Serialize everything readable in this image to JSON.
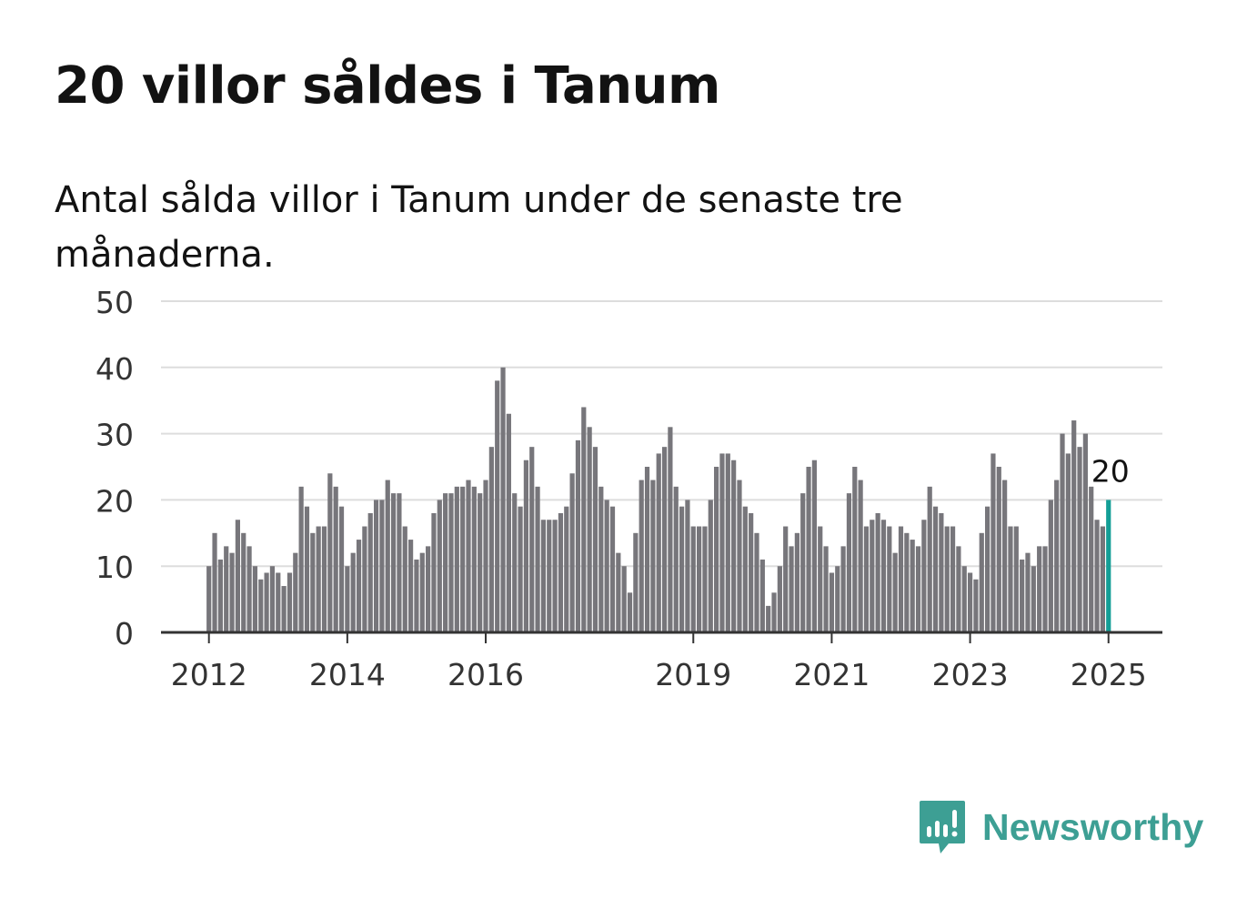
{
  "header": {
    "title": "20 villor såldes i Tanum",
    "subtitle": "Antal sålda villor i Tanum under de senaste tre månaderna."
  },
  "brand": {
    "name": "Newsworthy",
    "icon": "newsworthy-logo-icon",
    "color": "#3d9f94"
  },
  "colors": {
    "bar": "#77767b",
    "highlight": "#139e96",
    "grid": "#dddddd",
    "axis": "#333333",
    "text": "#121212"
  },
  "chart_data": {
    "type": "bar",
    "x_start": "2012-01",
    "x_step": "month",
    "yticks": [
      0,
      10,
      20,
      30,
      40,
      50
    ],
    "ylim": [
      0,
      50
    ],
    "xticks": [
      "2012",
      "2014",
      "2016",
      "2019",
      "2021",
      "2023",
      "2025"
    ],
    "grid": true,
    "values": [
      10,
      15,
      11,
      13,
      12,
      17,
      15,
      13,
      10,
      8,
      9,
      10,
      9,
      7,
      9,
      12,
      22,
      19,
      15,
      16,
      16,
      24,
      22,
      19,
      10,
      12,
      14,
      16,
      18,
      20,
      20,
      23,
      21,
      21,
      16,
      14,
      11,
      12,
      13,
      18,
      20,
      21,
      21,
      22,
      22,
      23,
      22,
      21,
      23,
      28,
      38,
      40,
      33,
      21,
      19,
      26,
      28,
      22,
      17,
      17,
      17,
      18,
      19,
      24,
      29,
      34,
      31,
      28,
      22,
      20,
      19,
      12,
      10,
      6,
      15,
      23,
      25,
      23,
      27,
      28,
      31,
      22,
      19,
      20,
      16,
      16,
      16,
      20,
      25,
      27,
      27,
      26,
      23,
      19,
      18,
      15,
      11,
      4,
      6,
      10,
      16,
      13,
      15,
      21,
      25,
      26,
      16,
      13,
      9,
      10,
      13,
      21,
      25,
      23,
      16,
      17,
      18,
      17,
      16,
      12,
      16,
      15,
      14,
      13,
      17,
      22,
      19,
      18,
      16,
      16,
      13,
      10,
      9,
      8,
      15,
      19,
      27,
      25,
      23,
      16,
      16,
      11,
      12,
      10,
      13,
      13,
      20,
      23,
      30,
      27,
      32,
      28,
      30,
      22,
      17,
      16,
      20
    ],
    "highlight_last": true,
    "last_value_label": "20"
  }
}
